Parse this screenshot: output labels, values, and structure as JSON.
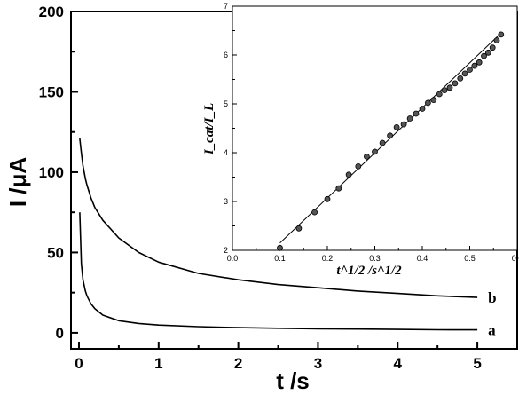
{
  "chart_data": [
    {
      "type": "line",
      "xlabel": "t /s",
      "ylabel": "I /μA",
      "xlim": [
        -0.1,
        5.5
      ],
      "ylim": [
        -10,
        200
      ],
      "xticks": [
        "0",
        "1",
        "2",
        "3",
        "4",
        "5"
      ],
      "yticks": [
        "0",
        "50",
        "100",
        "150",
        "200"
      ],
      "grid": false,
      "series": [
        {
          "name": "a",
          "x": [
            0.01,
            0.03,
            0.05,
            0.08,
            0.1,
            0.15,
            0.2,
            0.3,
            0.5,
            0.75,
            1.0,
            1.5,
            2.0,
            2.5,
            3.0,
            3.5,
            4.0,
            4.5,
            5.0
          ],
          "y": [
            75,
            43,
            33,
            26,
            23,
            18,
            15,
            11,
            7.5,
            5.8,
            4.8,
            3.8,
            3.2,
            2.8,
            2.5,
            2.3,
            2.1,
            1.9,
            1.8
          ]
        },
        {
          "name": "b",
          "x": [
            0.01,
            0.03,
            0.05,
            0.08,
            0.1,
            0.15,
            0.2,
            0.3,
            0.5,
            0.75,
            1.0,
            1.5,
            2.0,
            2.5,
            3.0,
            3.5,
            4.0,
            4.5,
            5.0
          ],
          "y": [
            121,
            112,
            104,
            96,
            92,
            84,
            78,
            70,
            59,
            50,
            44,
            37,
            33,
            30,
            28,
            26,
            24.5,
            23,
            22
          ]
        }
      ]
    },
    {
      "type": "scatter",
      "xlabel": "t^1/2 /s^1/2",
      "ylabel": "I_cat/I_L",
      "xlim": [
        0.0,
        0.6
      ],
      "ylim": [
        2,
        7
      ],
      "xticks": [
        "0.0",
        "0.1",
        "0.2",
        "0.3",
        "0.4",
        "0.5",
        "0.6"
      ],
      "yticks": [
        "2",
        "3",
        "4",
        "5",
        "6",
        "7"
      ],
      "grid": false,
      "series": [
        {
          "name": "",
          "x": [
            0.1,
            0.14,
            0.173,
            0.2,
            0.224,
            0.245,
            0.265,
            0.283,
            0.3,
            0.316,
            0.332,
            0.346,
            0.361,
            0.374,
            0.387,
            0.4,
            0.412,
            0.424,
            0.436,
            0.447,
            0.458,
            0.469,
            0.48,
            0.49,
            0.5,
            0.51,
            0.52,
            0.53,
            0.539,
            0.548,
            0.557,
            0.566
          ],
          "y": [
            2.05,
            2.45,
            2.78,
            3.05,
            3.27,
            3.55,
            3.72,
            3.92,
            4.02,
            4.2,
            4.35,
            4.52,
            4.58,
            4.7,
            4.8,
            4.9,
            5.02,
            5.08,
            5.2,
            5.28,
            5.33,
            5.42,
            5.52,
            5.62,
            5.7,
            5.78,
            5.85,
            5.98,
            6.05,
            6.15,
            6.3,
            6.42
          ]
        }
      ],
      "fit_line": {
        "x": [
          0.1,
          0.566
        ],
        "y": [
          2.15,
          6.45
        ]
      }
    }
  ]
}
